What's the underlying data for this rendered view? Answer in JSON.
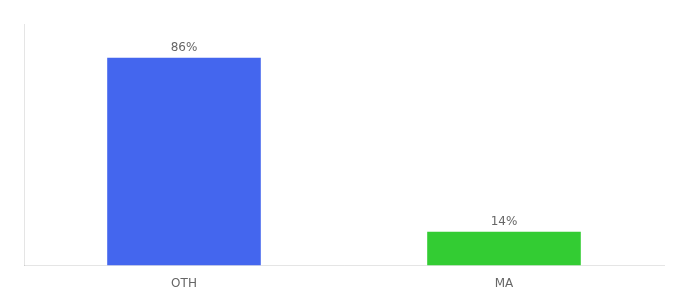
{
  "chart_data": {
    "type": "bar",
    "categories": [
      "OTH",
      "MA"
    ],
    "values": [
      86,
      14
    ],
    "value_labels": [
      "86%",
      "14%"
    ],
    "colors": [
      "#4466ee",
      "#33cc33"
    ],
    "ylim": [
      0,
      100
    ],
    "data_labels": true,
    "tick_labels": "x",
    "grid": false
  }
}
